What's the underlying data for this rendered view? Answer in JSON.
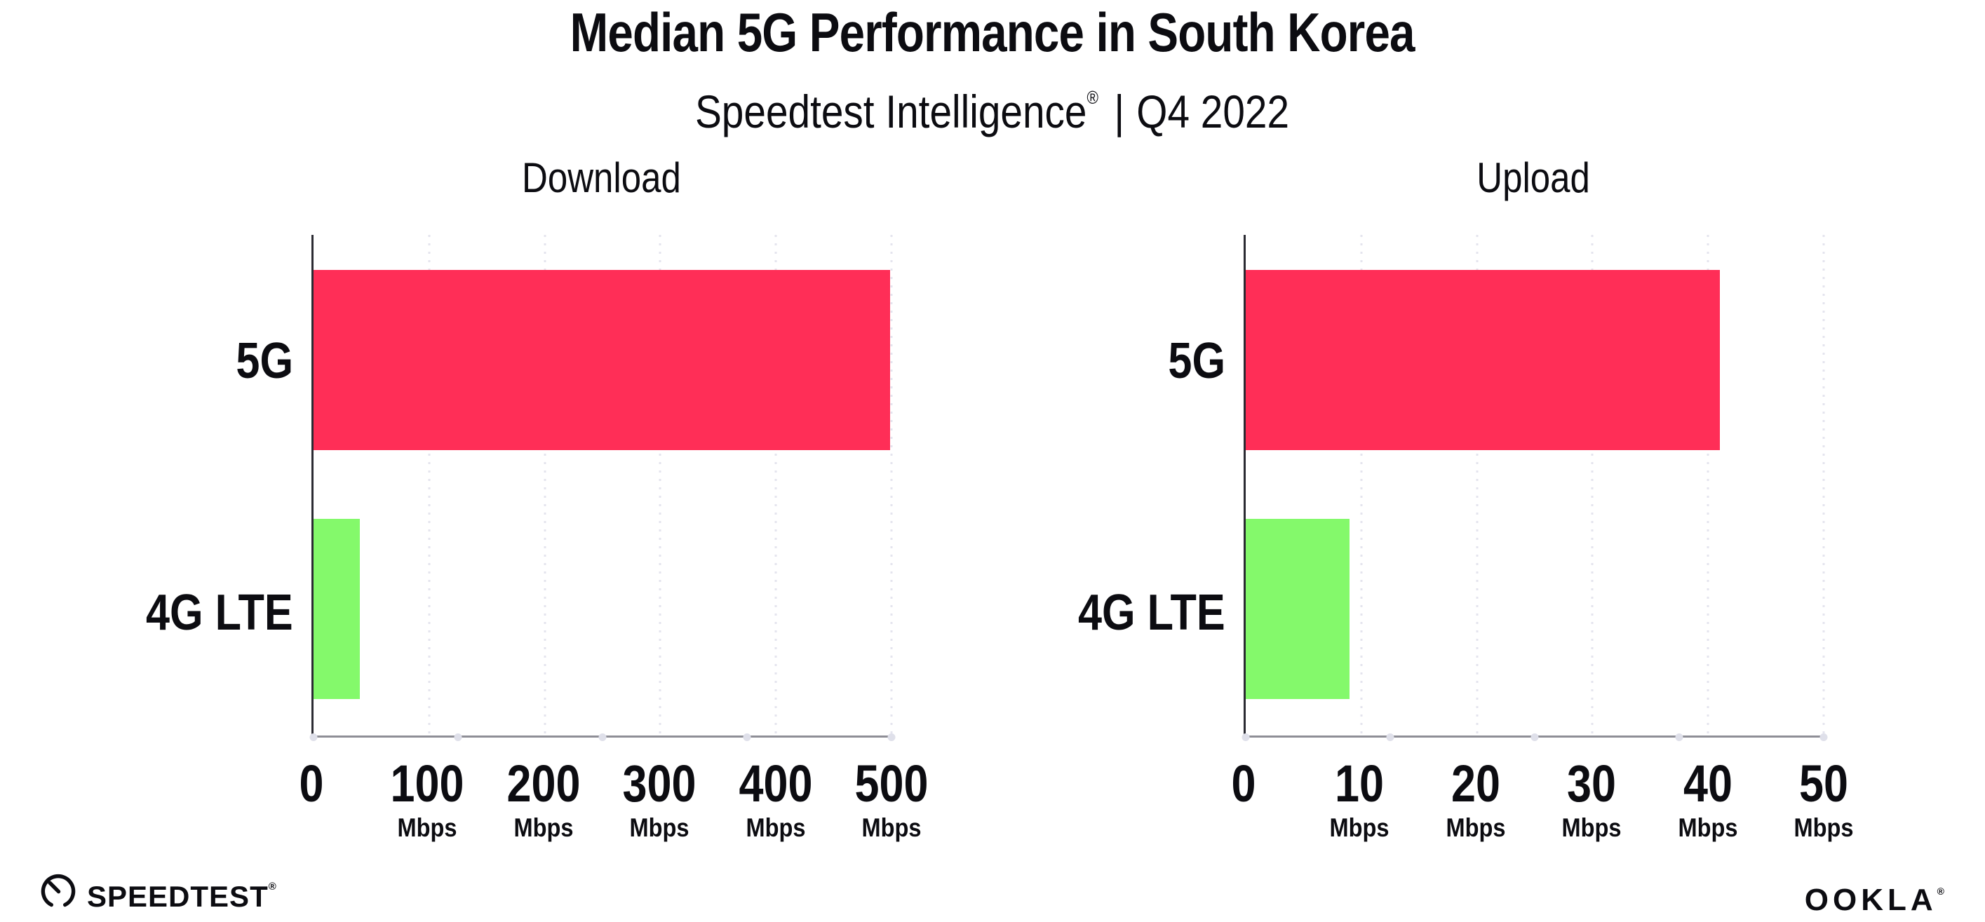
{
  "header": {
    "title": "Median 5G Performance in South Korea",
    "subtitle": {
      "product": "Speedtest Intelligence",
      "registered_mark": "®",
      "separator": "|",
      "period": "Q4 2022"
    }
  },
  "chart_data": [
    {
      "type": "bar",
      "orientation": "horizontal",
      "title": "Download",
      "categories": [
        "5G",
        "4G LTE"
      ],
      "series": [
        {
          "name": "5G",
          "value": 499,
          "color": "#ff2e57"
        },
        {
          "name": "4G LTE",
          "value": 40,
          "color": "#84f96b"
        }
      ],
      "unit": "Mbps",
      "xlim": [
        0,
        500
      ],
      "x_ticks": [
        {
          "label": "0",
          "unit": ""
        },
        {
          "label": "100",
          "unit": "Mbps"
        },
        {
          "label": "200",
          "unit": "Mbps"
        },
        {
          "label": "300",
          "unit": "Mbps"
        },
        {
          "label": "400",
          "unit": "Mbps"
        },
        {
          "label": "500",
          "unit": "Mbps"
        }
      ],
      "grid": "vertical dotted",
      "legend": "none"
    },
    {
      "type": "bar",
      "orientation": "horizontal",
      "title": "Upload",
      "categories": [
        "5G",
        "4G LTE"
      ],
      "series": [
        {
          "name": "5G",
          "value": 41,
          "color": "#ff2e57"
        },
        {
          "name": "4G LTE",
          "value": 9,
          "color": "#84f96b"
        }
      ],
      "unit": "Mbps",
      "xlim": [
        0,
        50
      ],
      "x_ticks": [
        {
          "label": "0",
          "unit": ""
        },
        {
          "label": "10",
          "unit": "Mbps"
        },
        {
          "label": "20",
          "unit": "Mbps"
        },
        {
          "label": "30",
          "unit": "Mbps"
        },
        {
          "label": "40",
          "unit": "Mbps"
        },
        {
          "label": "50",
          "unit": "Mbps"
        }
      ],
      "grid": "vertical dotted",
      "legend": "none"
    }
  ],
  "footer": {
    "speedtest_logo": {
      "text": "SPEEDTEST",
      "mark": "®"
    },
    "ookla_logo": {
      "text": "OOKLA",
      "mark": "®"
    }
  },
  "colors": {
    "bar_5g": "#ff2e57",
    "bar_4g_lte": "#84f96b",
    "grid": "#e4e4ee",
    "axis_y": "#2b2b33",
    "axis_x": "#8e8e96",
    "tick_dot": "#dfe0ea",
    "text": "#0c0c11",
    "background": "#ffffff"
  }
}
